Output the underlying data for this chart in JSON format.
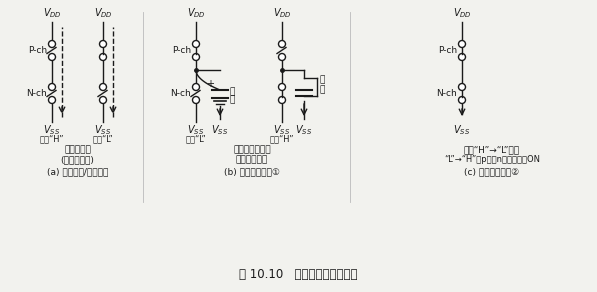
{
  "title": "图 10.10   发生消耗电流的路径",
  "bg_color": "#f2f2ee",
  "line_color": "#1a1a1a",
  "input_h": "输入“H”",
  "input_l": "输入“L”",
  "input_hh": "输入“H”",
  "no_pulse": "无电流脉冲",
  "leakage": "(只有漏电流)",
  "label_a": "(a) 稳定状态/静止状态",
  "charge_sub1": "向输出浮游电容",
  "charge_sub2": "充放电的电流",
  "label_b": "(b) 动态消耗电流①",
  "shoot_sub1": "输出“H”→“L”或者",
  "shoot_sub2": "“L”→“H”时p沟、n沟器件同时ON",
  "label_c": "(c) 动态消耗电流②",
  "pch": "P-ch",
  "nch": "N-ch",
  "charge_label1": "充",
  "charge_label2": "电",
  "discharge_label1": "放",
  "discharge_label2": "电",
  "vdd": "V_{DD}",
  "vss": "V_{SS}"
}
